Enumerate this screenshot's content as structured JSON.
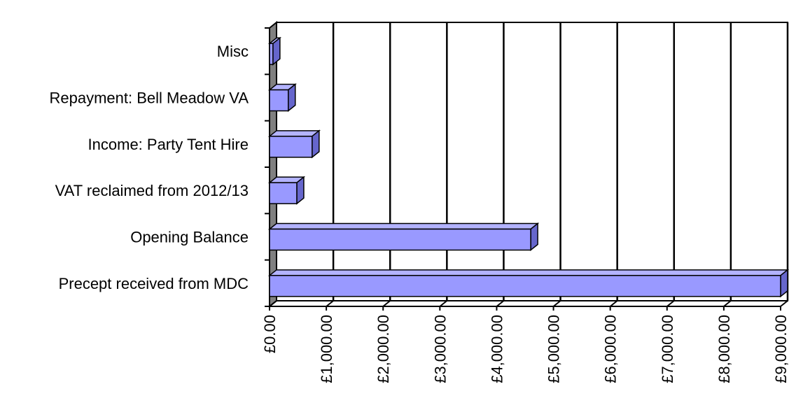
{
  "chart_data": {
    "type": "bar",
    "orientation": "horizontal",
    "style": "3d",
    "title": "",
    "xlabel": "",
    "ylabel": "",
    "categories": [
      "Precept received from MDC",
      "Opening Balance",
      "VAT reclaimed from 2012/13",
      "Income: Party Tent Hire",
      "Repayment: Bell Meadow VA",
      "Misc"
    ],
    "values": [
      9000,
      4600,
      480,
      750,
      330,
      60
    ],
    "xlim": [
      0,
      9000
    ],
    "x_ticks": [
      0,
      1000,
      2000,
      3000,
      4000,
      5000,
      6000,
      7000,
      8000,
      9000
    ],
    "x_tick_labels": [
      "£0.00",
      "£1,000.00",
      "£2,000.00",
      "£3,000.00",
      "£4,000.00",
      "£5,000.00",
      "£6,000.00",
      "£7,000.00",
      "£8,000.00",
      "£9,000.00"
    ],
    "grid": true,
    "legend": "none",
    "colors": {
      "bar_front": "#9999ff",
      "bar_top": "#b3b3ff",
      "bar_side": "#6666cc",
      "back_wall": "#ffffff",
      "side_wall": "#808080",
      "gridline": "#000000"
    }
  }
}
